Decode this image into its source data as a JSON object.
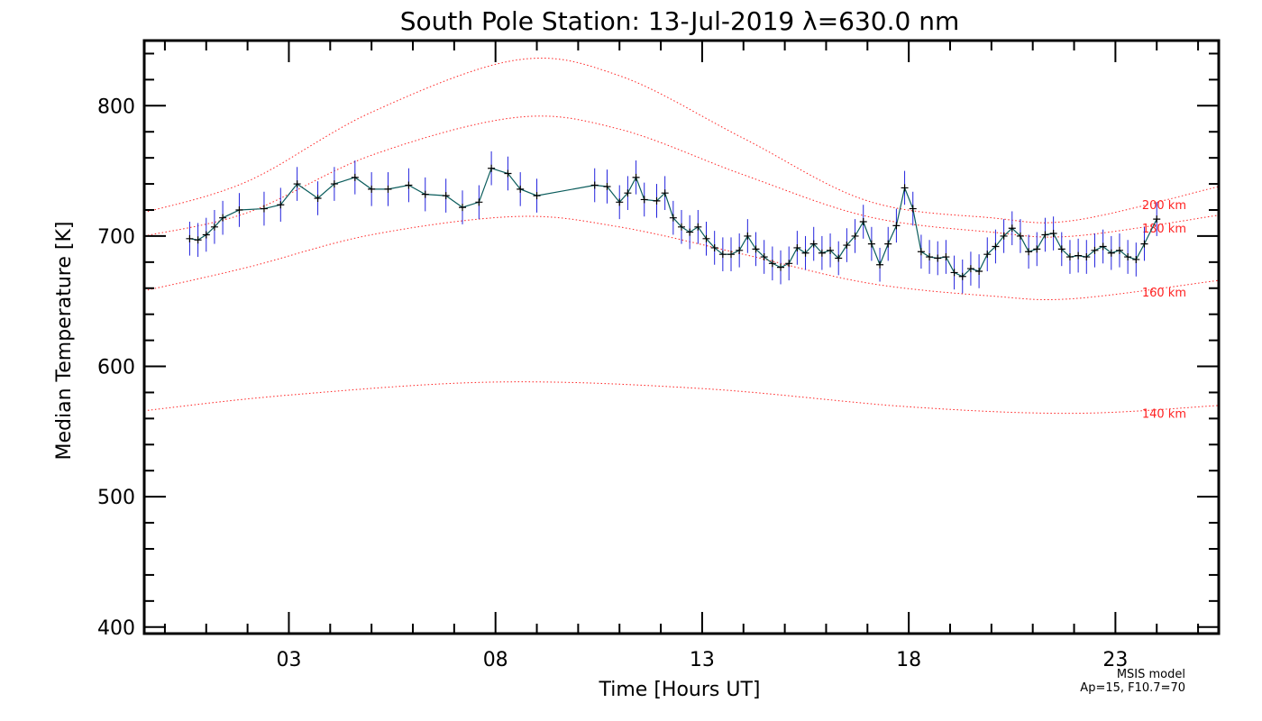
{
  "chart_data": {
    "type": "line",
    "title": "South Pole Station: 13-Jul-2019 λ=630.0 nm",
    "xlabel": "Time [Hours UT]",
    "ylabel": "Median Temperature [K]",
    "xlim": [
      -0.5,
      25.5
    ],
    "ylim": [
      395,
      850
    ],
    "x_ticks": [
      3,
      8,
      13,
      18,
      23
    ],
    "x_tick_labels": [
      "03",
      "08",
      "13",
      "18",
      "23"
    ],
    "y_ticks": [
      400,
      500,
      600,
      700,
      800
    ],
    "y_tick_labels": [
      "400",
      "500",
      "600",
      "700",
      "800"
    ],
    "grid": false,
    "colors": {
      "measurement": "#000000",
      "connecting_line": "#0a5c5c",
      "error_bars": "#2222dd",
      "model": "#ff2222"
    },
    "model_annotation": [
      "MSIS model",
      "Ap=15, F10.7=70"
    ],
    "model_curves": [
      {
        "name": "200 km",
        "x": [
          -0.5,
          2,
          5,
          8.5,
          11,
          14,
          17,
          20,
          22,
          25.5
        ],
        "y": [
          718,
          742,
          795,
          835,
          823,
          775,
          727,
          714,
          712,
          738
        ]
      },
      {
        "name": "180 km",
        "x": [
          -0.5,
          2,
          5,
          8.5,
          11,
          14,
          17,
          20,
          22,
          25.5
        ],
        "y": [
          700,
          718,
          762,
          791,
          782,
          747,
          715,
          703,
          700,
          716
        ]
      },
      {
        "name": "160 km",
        "x": [
          -0.5,
          2,
          5,
          8.5,
          11,
          14,
          17,
          20,
          22,
          25.5
        ],
        "y": [
          658,
          676,
          701,
          715,
          707,
          686,
          664,
          654,
          652,
          666
        ]
      },
      {
        "name": "140 km",
        "x": [
          -0.5,
          3,
          8,
          13,
          18,
          22,
          25.5
        ],
        "y": [
          566,
          578,
          588,
          583,
          569,
          564,
          570
        ]
      }
    ],
    "series": [
      {
        "x": [
          0.6,
          0.8,
          1.0,
          1.2,
          1.4,
          1.8,
          2.4,
          2.8,
          3.2,
          3.7,
          4.1,
          4.6,
          5.0,
          5.4,
          5.9,
          6.3,
          6.8,
          7.2,
          7.6,
          7.9,
          8.3,
          8.6,
          9.0,
          10.4,
          10.7,
          11.0,
          11.2,
          11.4,
          11.6,
          11.9,
          12.1,
          12.3,
          12.5,
          12.7,
          12.9,
          13.1,
          13.3,
          13.5,
          13.7,
          13.9,
          14.1,
          14.3,
          14.5,
          14.7,
          14.9,
          15.1,
          15.3,
          15.5,
          15.7,
          15.9,
          16.1,
          16.3,
          16.5,
          16.7,
          16.9,
          17.1,
          17.3,
          17.5,
          17.7,
          17.9,
          18.1,
          18.3,
          18.5,
          18.7,
          18.9,
          19.1,
          19.3,
          19.5,
          19.7,
          19.9,
          20.1,
          20.3,
          20.5,
          20.7,
          20.9,
          21.1,
          21.3,
          21.5,
          21.7,
          21.9,
          22.1,
          22.3,
          22.5,
          22.7,
          22.9,
          23.1,
          23.3,
          23.5,
          23.7,
          24.0
        ],
        "y": [
          698,
          697,
          701,
          707,
          714,
          720,
          721,
          724,
          740,
          729,
          740,
          745,
          736,
          736,
          739,
          732,
          731,
          722,
          726,
          752,
          748,
          736,
          731,
          739,
          738,
          726,
          733,
          745,
          728,
          727,
          733,
          714,
          707,
          703,
          707,
          698,
          691,
          686,
          686,
          689,
          700,
          690,
          684,
          679,
          676,
          679,
          691,
          687,
          694,
          687,
          689,
          683,
          693,
          700,
          711,
          694,
          678,
          694,
          708,
          737,
          721,
          688,
          684,
          683,
          684,
          672,
          669,
          675,
          673,
          686,
          692,
          700,
          706,
          700,
          688,
          690,
          701,
          702,
          690,
          684,
          685,
          684,
          689,
          692,
          687,
          689,
          684,
          682,
          694,
          713
        ],
        "yerr": 13
      }
    ]
  }
}
